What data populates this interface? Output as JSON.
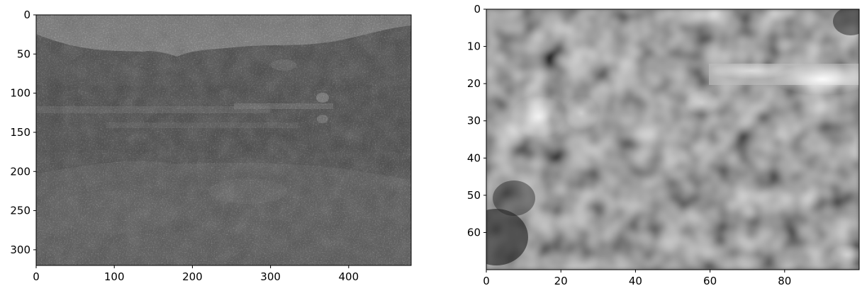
{
  "panels": [
    {
      "id": "left",
      "xlim": [
        0,
        480
      ],
      "ylim": [
        0,
        320
      ],
      "x_ticks": [
        "0",
        "100",
        "200",
        "300",
        "400"
      ],
      "y_ticks": [
        "0",
        "50",
        "100",
        "150",
        "200",
        "250",
        "300"
      ],
      "description": "grayscale noisy photograph of a forested hillside with a bright sky band at the top",
      "colormap": "gray"
    },
    {
      "id": "right",
      "xlim": [
        0,
        100
      ],
      "ylim": [
        0,
        70
      ],
      "x_ticks": [
        "0",
        "20",
        "40",
        "60",
        "80"
      ],
      "y_ticks": [
        "0",
        "10",
        "20",
        "30",
        "40",
        "50",
        "60"
      ],
      "description": "zoomed blurry grayscale crop with bright horizontal streak near top-right",
      "colormap": "gray"
    }
  ]
}
